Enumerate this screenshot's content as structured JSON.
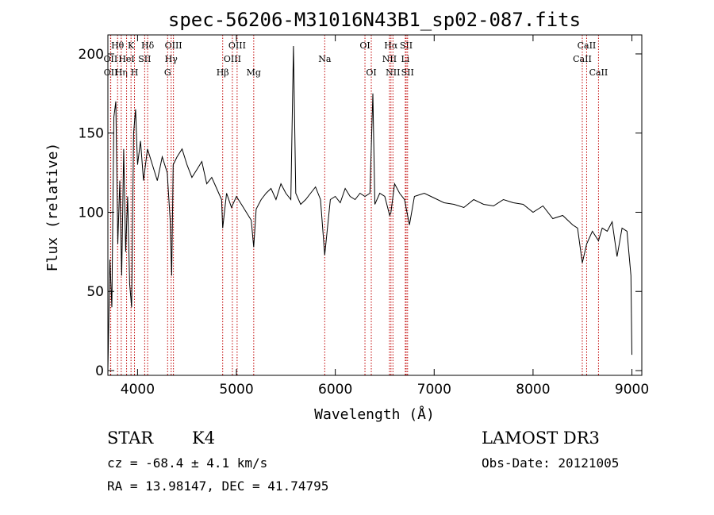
{
  "chart_data": {
    "type": "line",
    "title": "spec-56206-M31016N43B1_sp02-087.fits",
    "xlabel": "Wavelength (Å)",
    "ylabel": "Flux (relative)",
    "xlim": [
      3700,
      9100
    ],
    "ylim": [
      -3,
      212
    ],
    "xticks": [
      4000,
      5000,
      6000,
      7000,
      8000,
      9000
    ],
    "yticks": [
      0,
      50,
      100,
      150,
      200
    ],
    "grid": false,
    "series": [
      {
        "name": "flux",
        "x": [
          3700,
          3720,
          3740,
          3760,
          3780,
          3800,
          3820,
          3840,
          3860,
          3880,
          3900,
          3920,
          3940,
          3960,
          3980,
          4000,
          4030,
          4060,
          4100,
          4150,
          4200,
          4250,
          4300,
          4330,
          4345,
          4360,
          4400,
          4450,
          4500,
          4550,
          4600,
          4650,
          4700,
          4750,
          4800,
          4850,
          4861,
          4900,
          4950,
          5000,
          5050,
          5100,
          5150,
          5175,
          5200,
          5250,
          5300,
          5350,
          5400,
          5450,
          5500,
          5550,
          5577,
          5600,
          5650,
          5700,
          5750,
          5800,
          5850,
          5893,
          5950,
          6000,
          6050,
          6100,
          6150,
          6200,
          6250,
          6300,
          6350,
          6380,
          6400,
          6450,
          6500,
          6550,
          6563,
          6600,
          6650,
          6700,
          6750,
          6800,
          6900,
          7000,
          7100,
          7200,
          7300,
          7400,
          7500,
          7600,
          7700,
          7800,
          7900,
          8000,
          8100,
          8200,
          8300,
          8400,
          8450,
          8498,
          8542,
          8600,
          8662,
          8700,
          8750,
          8800,
          8850,
          8900,
          8950,
          8990,
          9000
        ],
        "y": [
          0,
          70,
          40,
          160,
          170,
          80,
          120,
          60,
          140,
          75,
          110,
          55,
          40,
          150,
          165,
          130,
          145,
          120,
          140,
          130,
          120,
          135,
          125,
          95,
          60,
          130,
          135,
          140,
          130,
          122,
          127,
          132,
          118,
          122,
          115,
          108,
          90,
          112,
          103,
          110,
          105,
          100,
          95,
          78,
          102,
          108,
          112,
          115,
          108,
          118,
          112,
          108,
          205,
          112,
          105,
          108,
          112,
          116,
          108,
          73,
          108,
          110,
          106,
          115,
          110,
          108,
          112,
          110,
          112,
          175,
          105,
          112,
          110,
          98,
          100,
          118,
          112,
          108,
          92,
          110,
          112,
          109,
          106,
          105,
          103,
          108,
          105,
          104,
          108,
          106,
          105,
          100,
          104,
          96,
          98,
          92,
          90,
          68,
          80,
          88,
          82,
          90,
          88,
          94,
          72,
          90,
          88,
          60,
          10
        ]
      }
    ],
    "lines": [
      {
        "label": "Hθ",
        "x": 3798,
        "row": 1
      },
      {
        "label": "OII",
        "x": 3727,
        "row": 2
      },
      {
        "label": "OII",
        "x": 3729,
        "row": 3
      },
      {
        "label": "Hη",
        "x": 3835,
        "row": 3
      },
      {
        "label": "HeI",
        "x": 3889,
        "row": 2
      },
      {
        "label": "K",
        "x": 3934,
        "row": 1
      },
      {
        "label": "H",
        "x": 3969,
        "row": 3
      },
      {
        "label": "SII",
        "x": 4072,
        "row": 2
      },
      {
        "label": "Hδ",
        "x": 4102,
        "row": 1
      },
      {
        "label": "OIII",
        "x": 4363,
        "row": 1
      },
      {
        "label": "Hγ",
        "x": 4340,
        "row": 2
      },
      {
        "label": "G",
        "x": 4304,
        "row": 3
      },
      {
        "label": "Hβ",
        "x": 4861,
        "row": 3
      },
      {
        "label": "OIII",
        "x": 5007,
        "row": 1
      },
      {
        "label": "OIII",
        "x": 4959,
        "row": 2
      },
      {
        "label": "Mg",
        "x": 5175,
        "row": 3
      },
      {
        "label": "Na",
        "x": 5893,
        "row": 2
      },
      {
        "label": "OI",
        "x": 6300,
        "row": 1
      },
      {
        "label": "OI",
        "x": 6364,
        "row": 3
      },
      {
        "label": "Hα",
        "x": 6563,
        "row": 1
      },
      {
        "label": "NII",
        "x": 6548,
        "row": 2
      },
      {
        "label": "NII",
        "x": 6583,
        "row": 3
      },
      {
        "label": "SII",
        "x": 6717,
        "row": 1
      },
      {
        "label": "Li",
        "x": 6708,
        "row": 2
      },
      {
        "label": "SII",
        "x": 6731,
        "row": 3
      },
      {
        "label": "CaII",
        "x": 8542,
        "row": 1
      },
      {
        "label": "CaII",
        "x": 8498,
        "row": 2
      },
      {
        "label": "CaII",
        "x": 8662,
        "row": 3
      }
    ]
  },
  "info": {
    "class": "STAR",
    "subclass": "K4",
    "survey": "LAMOST DR3",
    "cz": "cz = -68.4 ± 4.1 km/s",
    "obs_date": "Obs-Date: 20121005",
    "radec": "RA =  13.98147, DEC =  41.74795"
  }
}
